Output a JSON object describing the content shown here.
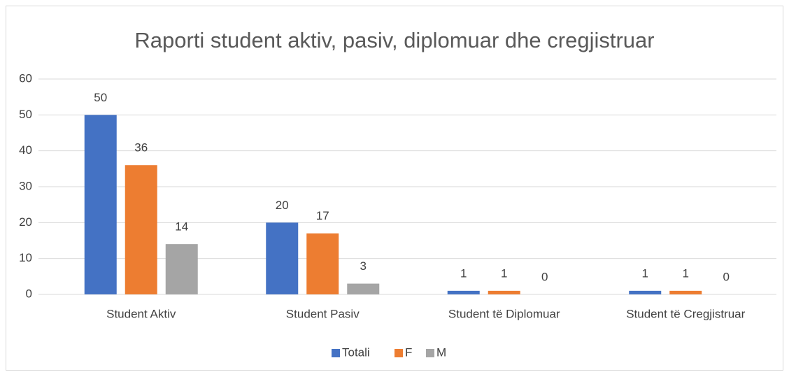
{
  "chart_data": {
    "type": "bar",
    "title": "Raporti student aktiv, pasiv, diplomuar dhe cregjistruar",
    "categories": [
      "Student Aktiv",
      "Student Pasiv",
      "Student të Diplomuar",
      "Student të Cregjistruar"
    ],
    "series": [
      {
        "name": "Totali",
        "color": "#4472c4",
        "values": [
          50,
          20,
          1,
          1
        ]
      },
      {
        "name": "F",
        "color": "#ed7d31",
        "values": [
          36,
          17,
          1,
          1
        ]
      },
      {
        "name": "M",
        "color": "#a5a5a5",
        "values": [
          14,
          3,
          0,
          0
        ]
      }
    ],
    "ylim": [
      0,
      60
    ],
    "yticks": [
      0,
      10,
      20,
      30,
      40,
      50,
      60
    ],
    "grid": true,
    "legend": "bottom"
  }
}
